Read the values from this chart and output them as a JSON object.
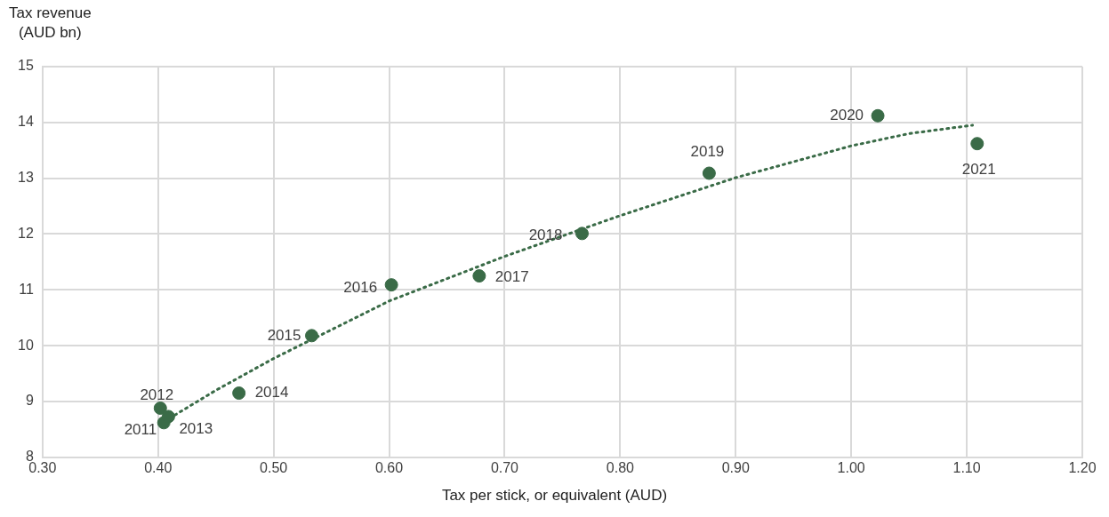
{
  "chart_data": {
    "type": "scatter",
    "ylabel": "Tax revenue\n(AUD bn)",
    "xlabel": "Tax per stick, or equivalent (AUD)",
    "xlim": [
      0.3,
      1.2
    ],
    "xticks": [
      {
        "value": 0.3,
        "label": "0.30"
      },
      {
        "value": 0.4,
        "label": "0.40"
      },
      {
        "value": 0.5,
        "label": "0.50"
      },
      {
        "value": 0.6,
        "label": "0.60"
      },
      {
        "value": 0.7,
        "label": "0.70"
      },
      {
        "value": 0.8,
        "label": "0.80"
      },
      {
        "value": 0.9,
        "label": "0.90"
      },
      {
        "value": 1.0,
        "label": "1.00"
      },
      {
        "value": 1.1,
        "label": "1.10"
      },
      {
        "value": 1.2,
        "label": "1.20"
      }
    ],
    "ylim": [
      8,
      15
    ],
    "yticks": [
      8,
      9,
      10,
      11,
      12,
      13,
      14,
      15
    ],
    "grid": true,
    "legend": false,
    "marker": "circle",
    "series": [
      {
        "color": "#3a6b47",
        "x": [
          0.405,
          0.402,
          0.409,
          0.47,
          0.533,
          0.602,
          0.678,
          0.767,
          0.877,
          1.023,
          1.109
        ],
        "values": [
          8.62,
          8.88,
          8.73,
          9.15,
          10.18,
          11.09,
          11.25,
          12.01,
          13.09,
          14.12,
          13.62
        ]
      },
      {
        "type": "line",
        "color": "#3a6b47",
        "line_style": "dotted",
        "marker": "none",
        "x": [
          0.41,
          0.45,
          0.5,
          0.6,
          0.7,
          0.8,
          0.9,
          1.0,
          1.05,
          1.105
        ],
        "values": [
          8.7,
          9.2,
          9.77,
          10.8,
          11.6,
          12.33,
          13.01,
          13.58,
          13.8,
          13.95
        ]
      }
    ],
    "annotations": [
      {
        "text": "2011",
        "x": 0.405,
        "y": 8.62
      },
      {
        "text": "2012",
        "x": 0.402,
        "y": 8.88
      },
      {
        "text": "2013",
        "x": 0.409,
        "y": 8.73
      },
      {
        "text": "2014",
        "x": 0.47,
        "y": 9.15
      },
      {
        "text": "2015",
        "x": 0.533,
        "y": 10.18
      },
      {
        "text": "2016",
        "x": 0.602,
        "y": 11.09
      },
      {
        "text": "2017",
        "x": 0.678,
        "y": 11.25
      },
      {
        "text": "2018",
        "x": 0.767,
        "y": 12.01
      },
      {
        "text": "2019",
        "x": 0.877,
        "y": 13.09
      },
      {
        "text": "2020",
        "x": 1.023,
        "y": 14.12
      },
      {
        "text": "2021",
        "x": 1.109,
        "y": 13.62
      }
    ]
  }
}
